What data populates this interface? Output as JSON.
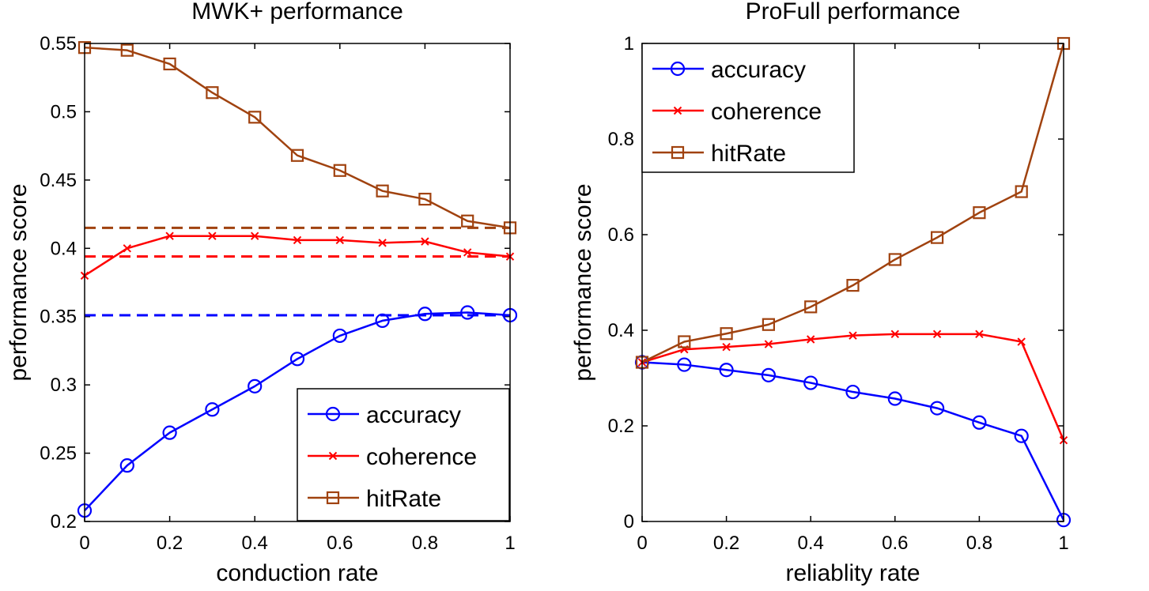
{
  "chart_data": [
    {
      "type": "line",
      "title": "MWK+ performance",
      "xlabel": "conduction rate",
      "ylabel": "performance score",
      "xlim": [
        0,
        1
      ],
      "ylim": [
        0.2,
        0.55
      ],
      "xticks": [
        0,
        0.2,
        0.4,
        0.6,
        0.8,
        1
      ],
      "xtick_labels": [
        "0",
        "0.2",
        "0.4",
        "0.6",
        "0.8",
        "1"
      ],
      "yticks": [
        0.2,
        0.25,
        0.3,
        0.35,
        0.4,
        0.45,
        0.5,
        0.55
      ],
      "ytick_labels": [
        "0.2",
        "0.25",
        "0.3",
        "0.35",
        "0.4",
        "0.45",
        "0.5",
        "0.55"
      ],
      "legend_position": "bottom-right",
      "x": [
        0,
        0.1,
        0.2,
        0.3,
        0.4,
        0.5,
        0.6,
        0.7,
        0.8,
        0.9,
        1
      ],
      "series": [
        {
          "name": "accuracy",
          "color": "#0000ff",
          "marker": "circle",
          "values": [
            0.208,
            0.241,
            0.265,
            0.282,
            0.299,
            0.319,
            0.336,
            0.347,
            0.352,
            0.353,
            0.351
          ]
        },
        {
          "name": "coherence",
          "color": "#ff0000",
          "marker": "x",
          "values": [
            0.38,
            0.4,
            0.409,
            0.409,
            0.409,
            0.406,
            0.406,
            0.404,
            0.405,
            0.397,
            0.394
          ]
        },
        {
          "name": "hitRate",
          "color": "#a0420f",
          "marker": "square",
          "values": [
            0.547,
            0.545,
            0.535,
            0.514,
            0.496,
            0.468,
            0.457,
            0.442,
            0.436,
            0.42,
            0.415
          ]
        }
      ],
      "reference_lines": [
        {
          "series": "hitRate",
          "y": 0.415,
          "color": "#a0420f",
          "style": "dashed"
        },
        {
          "series": "coherence",
          "y": 0.394,
          "color": "#ff0000",
          "style": "dashed"
        },
        {
          "series": "accuracy",
          "y": 0.351,
          "color": "#0000ff",
          "style": "dashed"
        }
      ]
    },
    {
      "type": "line",
      "title": "ProFull performance",
      "xlabel": "reliablity rate",
      "ylabel": "performance score",
      "xlim": [
        0,
        1
      ],
      "ylim": [
        0,
        1
      ],
      "xticks": [
        0,
        0.2,
        0.4,
        0.6,
        0.8,
        1
      ],
      "xtick_labels": [
        "0",
        "0.2",
        "0.4",
        "0.6",
        "0.8",
        "1"
      ],
      "yticks": [
        0,
        0.2,
        0.4,
        0.6,
        0.8,
        1
      ],
      "ytick_labels": [
        "0",
        "0.2",
        "0.4",
        "0.6",
        "0.8",
        "1"
      ],
      "legend_position": "top-left",
      "x": [
        0,
        0.1,
        0.2,
        0.3,
        0.4,
        0.5,
        0.6,
        0.7,
        0.8,
        0.9,
        1
      ],
      "series": [
        {
          "name": "accuracy",
          "color": "#0000ff",
          "marker": "circle",
          "values": [
            0.333,
            0.328,
            0.317,
            0.306,
            0.29,
            0.271,
            0.257,
            0.237,
            0.207,
            0.179,
            0.003
          ]
        },
        {
          "name": "coherence",
          "color": "#ff0000",
          "marker": "x",
          "values": [
            0.333,
            0.36,
            0.365,
            0.371,
            0.381,
            0.389,
            0.392,
            0.392,
            0.392,
            0.376,
            0.17
          ]
        },
        {
          "name": "hitRate",
          "color": "#a0420f",
          "marker": "square",
          "values": [
            0.333,
            0.376,
            0.393,
            0.412,
            0.449,
            0.494,
            0.548,
            0.594,
            0.646,
            0.69,
            1.0
          ]
        }
      ],
      "reference_lines": []
    }
  ]
}
